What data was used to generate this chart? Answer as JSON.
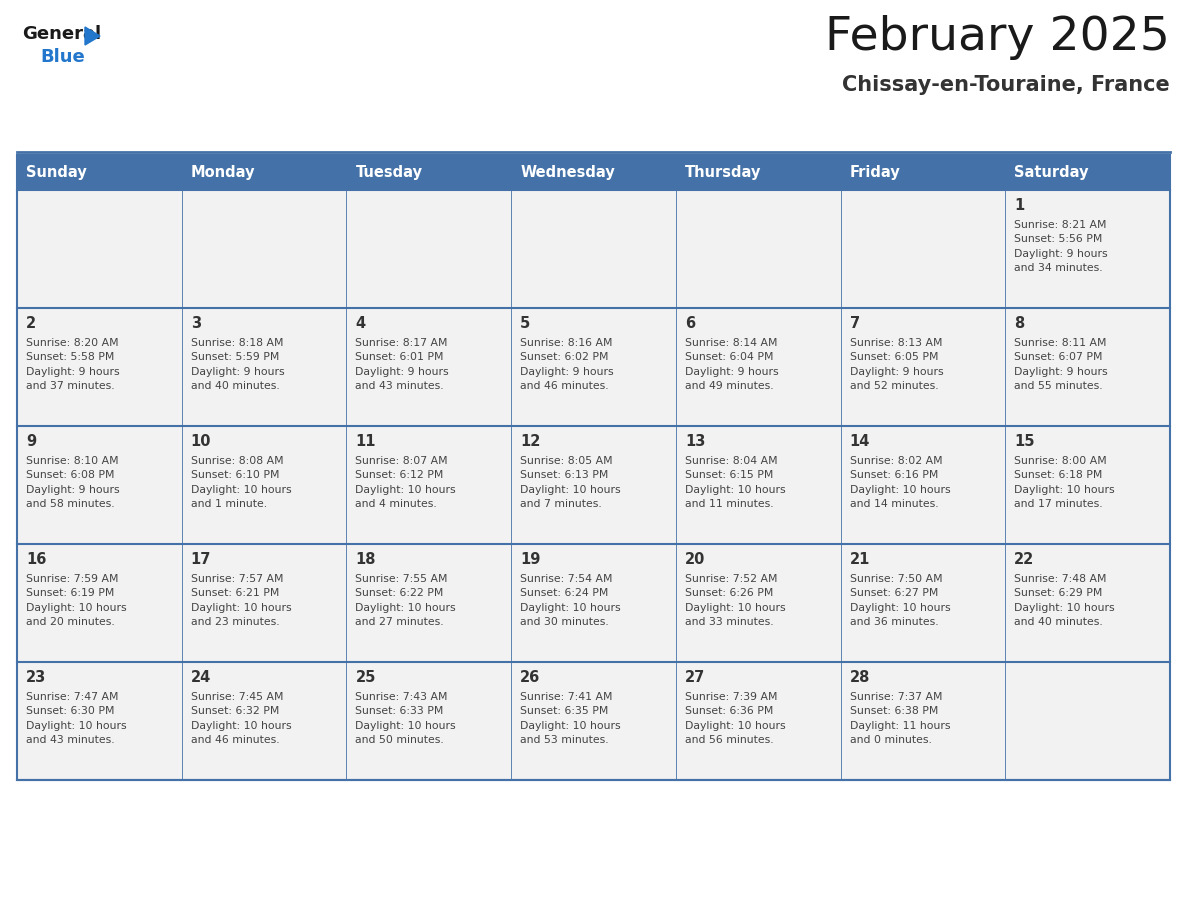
{
  "title": "February 2025",
  "subtitle": "Chissay-en-Touraine, France",
  "days_of_week": [
    "Sunday",
    "Monday",
    "Tuesday",
    "Wednesday",
    "Thursday",
    "Friday",
    "Saturday"
  ],
  "header_bg": "#4472a8",
  "header_text": "#ffffff",
  "row_bg": "#f2f2f2",
  "cell_border_color": "#4472a8",
  "day_num_color": "#333333",
  "info_color": "#444444",
  "title_color": "#1a1a1a",
  "subtitle_color": "#333333",
  "weeks": [
    {
      "days": [
        {
          "day": null,
          "info": null
        },
        {
          "day": null,
          "info": null
        },
        {
          "day": null,
          "info": null
        },
        {
          "day": null,
          "info": null
        },
        {
          "day": null,
          "info": null
        },
        {
          "day": null,
          "info": null
        },
        {
          "day": 1,
          "info": "Sunrise: 8:21 AM\nSunset: 5:56 PM\nDaylight: 9 hours\nand 34 minutes."
        }
      ]
    },
    {
      "days": [
        {
          "day": 2,
          "info": "Sunrise: 8:20 AM\nSunset: 5:58 PM\nDaylight: 9 hours\nand 37 minutes."
        },
        {
          "day": 3,
          "info": "Sunrise: 8:18 AM\nSunset: 5:59 PM\nDaylight: 9 hours\nand 40 minutes."
        },
        {
          "day": 4,
          "info": "Sunrise: 8:17 AM\nSunset: 6:01 PM\nDaylight: 9 hours\nand 43 minutes."
        },
        {
          "day": 5,
          "info": "Sunrise: 8:16 AM\nSunset: 6:02 PM\nDaylight: 9 hours\nand 46 minutes."
        },
        {
          "day": 6,
          "info": "Sunrise: 8:14 AM\nSunset: 6:04 PM\nDaylight: 9 hours\nand 49 minutes."
        },
        {
          "day": 7,
          "info": "Sunrise: 8:13 AM\nSunset: 6:05 PM\nDaylight: 9 hours\nand 52 minutes."
        },
        {
          "day": 8,
          "info": "Sunrise: 8:11 AM\nSunset: 6:07 PM\nDaylight: 9 hours\nand 55 minutes."
        }
      ]
    },
    {
      "days": [
        {
          "day": 9,
          "info": "Sunrise: 8:10 AM\nSunset: 6:08 PM\nDaylight: 9 hours\nand 58 minutes."
        },
        {
          "day": 10,
          "info": "Sunrise: 8:08 AM\nSunset: 6:10 PM\nDaylight: 10 hours\nand 1 minute."
        },
        {
          "day": 11,
          "info": "Sunrise: 8:07 AM\nSunset: 6:12 PM\nDaylight: 10 hours\nand 4 minutes."
        },
        {
          "day": 12,
          "info": "Sunrise: 8:05 AM\nSunset: 6:13 PM\nDaylight: 10 hours\nand 7 minutes."
        },
        {
          "day": 13,
          "info": "Sunrise: 8:04 AM\nSunset: 6:15 PM\nDaylight: 10 hours\nand 11 minutes."
        },
        {
          "day": 14,
          "info": "Sunrise: 8:02 AM\nSunset: 6:16 PM\nDaylight: 10 hours\nand 14 minutes."
        },
        {
          "day": 15,
          "info": "Sunrise: 8:00 AM\nSunset: 6:18 PM\nDaylight: 10 hours\nand 17 minutes."
        }
      ]
    },
    {
      "days": [
        {
          "day": 16,
          "info": "Sunrise: 7:59 AM\nSunset: 6:19 PM\nDaylight: 10 hours\nand 20 minutes."
        },
        {
          "day": 17,
          "info": "Sunrise: 7:57 AM\nSunset: 6:21 PM\nDaylight: 10 hours\nand 23 minutes."
        },
        {
          "day": 18,
          "info": "Sunrise: 7:55 AM\nSunset: 6:22 PM\nDaylight: 10 hours\nand 27 minutes."
        },
        {
          "day": 19,
          "info": "Sunrise: 7:54 AM\nSunset: 6:24 PM\nDaylight: 10 hours\nand 30 minutes."
        },
        {
          "day": 20,
          "info": "Sunrise: 7:52 AM\nSunset: 6:26 PM\nDaylight: 10 hours\nand 33 minutes."
        },
        {
          "day": 21,
          "info": "Sunrise: 7:50 AM\nSunset: 6:27 PM\nDaylight: 10 hours\nand 36 minutes."
        },
        {
          "day": 22,
          "info": "Sunrise: 7:48 AM\nSunset: 6:29 PM\nDaylight: 10 hours\nand 40 minutes."
        }
      ]
    },
    {
      "days": [
        {
          "day": 23,
          "info": "Sunrise: 7:47 AM\nSunset: 6:30 PM\nDaylight: 10 hours\nand 43 minutes."
        },
        {
          "day": 24,
          "info": "Sunrise: 7:45 AM\nSunset: 6:32 PM\nDaylight: 10 hours\nand 46 minutes."
        },
        {
          "day": 25,
          "info": "Sunrise: 7:43 AM\nSunset: 6:33 PM\nDaylight: 10 hours\nand 50 minutes."
        },
        {
          "day": 26,
          "info": "Sunrise: 7:41 AM\nSunset: 6:35 PM\nDaylight: 10 hours\nand 53 minutes."
        },
        {
          "day": 27,
          "info": "Sunrise: 7:39 AM\nSunset: 6:36 PM\nDaylight: 10 hours\nand 56 minutes."
        },
        {
          "day": 28,
          "info": "Sunrise: 7:37 AM\nSunset: 6:38 PM\nDaylight: 11 hours\nand 0 minutes."
        },
        {
          "day": null,
          "info": null
        }
      ]
    }
  ]
}
